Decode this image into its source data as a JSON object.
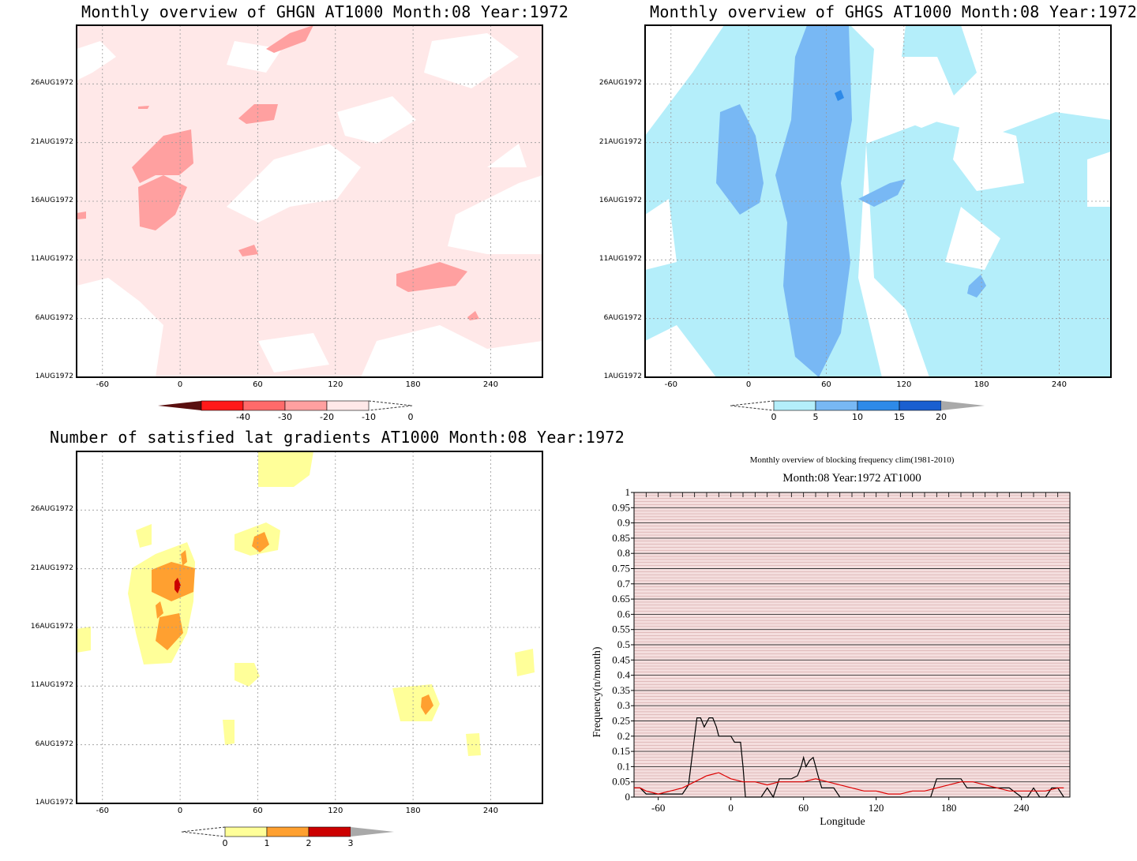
{
  "panels": {
    "ghgn": {
      "title": "Monthly overview of GHGN AT1000 Month:08 Year:1972",
      "y_ticks": [
        "26AUG1972",
        "21AUG1972",
        "16AUG1972",
        "11AUG1972",
        "6AUG1972",
        "1AUG1972"
      ],
      "x_ticks": [
        "-60",
        "0",
        "60",
        "120",
        "180",
        "240"
      ],
      "colorbar": [
        "-40",
        "-30",
        "-20",
        "-10",
        "0"
      ],
      "colors": [
        "#5a0f0f",
        "#ff1a1a",
        "#ff6a6a",
        "#ffa0a0",
        "#ffe8e8"
      ]
    },
    "ghgs": {
      "title": "Monthly overview of GHGS AT1000 Month:08 Year:1972",
      "y_ticks": [
        "26AUG1972",
        "21AUG1972",
        "16AUG1972",
        "11AUG1972",
        "6AUG1972",
        "1AUG1972"
      ],
      "x_ticks": [
        "-60",
        "0",
        "60",
        "120",
        "180",
        "240"
      ],
      "colorbar": [
        "0",
        "5",
        "10",
        "15",
        "20"
      ],
      "colors": [
        "#b4eefa",
        "#78b8f4",
        "#2e8ae8",
        "#1a5fd0",
        "#a9a9a9"
      ]
    },
    "lat": {
      "title": "Number of satisfied lat gradients AT1000 Month:08 Year:1972",
      "y_ticks": [
        "26AUG1972",
        "21AUG1972",
        "16AUG1972",
        "11AUG1972",
        "6AUG1972",
        "1AUG1972"
      ],
      "x_ticks": [
        "-60",
        "0",
        "60",
        "120",
        "180",
        "240"
      ],
      "colorbar": [
        "0",
        "1",
        "2",
        "3"
      ],
      "colors": [
        "#ffff99",
        "#ffa030",
        "#cc0000",
        "#a9a9a9"
      ]
    }
  },
  "chart_data": {
    "type": "line",
    "title": "Monthly overview of blocking frequency clim(1981-2010)",
    "subtitle": "Month:08 Year:1972  AT1000",
    "xlabel": "Longitude",
    "ylabel": "Frequency(n/month)",
    "xlim": [
      -80,
      280
    ],
    "ylim": [
      0,
      1
    ],
    "x_ticks": [
      "-60",
      "0",
      "60",
      "120",
      "180",
      "240"
    ],
    "y_ticks": [
      "0",
      "0.05",
      "0.1",
      "0.15",
      "0.2",
      "0.25",
      "0.3",
      "0.35",
      "0.4",
      "0.45",
      "0.5",
      "0.55",
      "0.6",
      "0.65",
      "0.7",
      "0.75",
      "0.8",
      "0.85",
      "0.9",
      "0.95",
      "1"
    ],
    "grid": true,
    "background_color": "#f4dede",
    "series": [
      {
        "color": "#000000",
        "x": [
          -80,
          -75,
          -70,
          -60,
          -50,
          -40,
          -35,
          -30,
          -28,
          -25,
          -22,
          -18,
          -15,
          -12,
          -10,
          -5,
          0,
          3,
          5,
          8,
          10,
          12,
          15,
          20,
          25,
          30,
          35,
          40,
          45,
          50,
          55,
          58,
          60,
          62,
          65,
          68,
          70,
          72,
          75,
          80,
          85,
          90,
          100,
          110,
          120,
          130,
          140,
          150,
          160,
          165,
          170,
          175,
          180,
          185,
          190,
          195,
          200,
          210,
          220,
          230,
          240,
          245,
          250,
          255,
          260,
          265,
          270,
          275
        ],
        "y": [
          0.03,
          0.03,
          0.01,
          0.01,
          0.01,
          0.01,
          0.04,
          0.2,
          0.26,
          0.26,
          0.23,
          0.26,
          0.26,
          0.23,
          0.2,
          0.2,
          0.2,
          0.18,
          0.18,
          0.18,
          0.1,
          0.0,
          0.0,
          0.0,
          0.0,
          0.03,
          0.0,
          0.06,
          0.06,
          0.06,
          0.07,
          0.1,
          0.13,
          0.1,
          0.12,
          0.13,
          0.1,
          0.07,
          0.03,
          0.03,
          0.03,
          0.0,
          0.0,
          0.0,
          0.0,
          0.0,
          0.0,
          0.0,
          0.0,
          0.0,
          0.06,
          0.06,
          0.06,
          0.06,
          0.06,
          0.03,
          0.03,
          0.03,
          0.03,
          0.03,
          0.0,
          0.0,
          0.03,
          0.0,
          0.0,
          0.03,
          0.03,
          0.0
        ]
      },
      {
        "color": "#dd0000",
        "x": [
          -80,
          -75,
          -70,
          -60,
          -50,
          -40,
          -30,
          -20,
          -10,
          -5,
          0,
          10,
          20,
          30,
          40,
          50,
          60,
          70,
          80,
          90,
          100,
          110,
          120,
          130,
          140,
          150,
          160,
          170,
          180,
          190,
          200,
          210,
          220,
          230,
          240,
          250,
          260,
          270,
          275
        ],
        "y": [
          0.03,
          0.03,
          0.02,
          0.01,
          0.02,
          0.03,
          0.05,
          0.07,
          0.08,
          0.07,
          0.06,
          0.05,
          0.05,
          0.04,
          0.05,
          0.05,
          0.05,
          0.06,
          0.05,
          0.04,
          0.03,
          0.02,
          0.02,
          0.01,
          0.01,
          0.02,
          0.02,
          0.03,
          0.04,
          0.05,
          0.05,
          0.04,
          0.03,
          0.02,
          0.02,
          0.02,
          0.02,
          0.03,
          0.03
        ]
      }
    ]
  }
}
